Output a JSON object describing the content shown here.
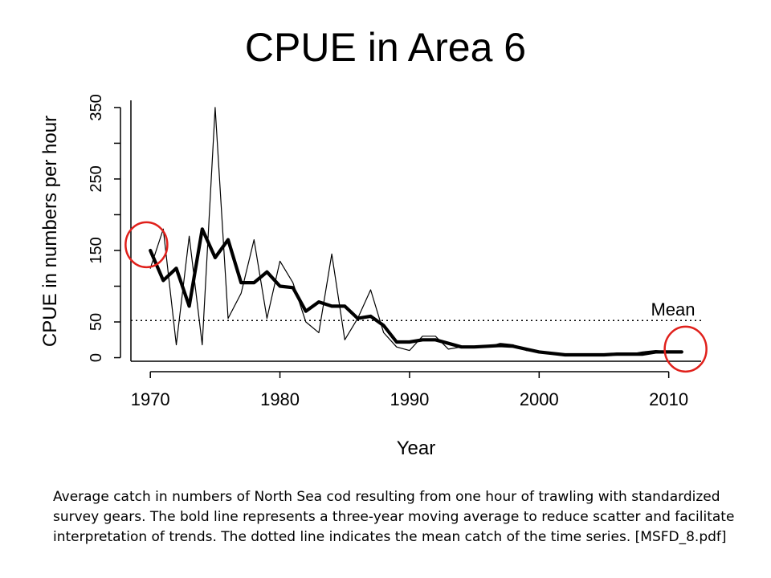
{
  "slide": {
    "title": "CPUE in Area 6",
    "caption": "Average catch in numbers of North Sea cod resulting from one hour of trawling with standardized survey gears. The bold line represents a three-year moving average to reduce scatter and facilitate interpretation of trends. The dotted line indicates the mean catch of the time series. [MSFD_8.pdf]"
  },
  "chart_data": {
    "type": "line",
    "title": "",
    "xlabel": "Year",
    "ylabel": "CPUE in numbers per hour",
    "xlim": [
      1968.5,
      2012.5
    ],
    "ylim": [
      -5,
      360
    ],
    "x_ticks": [
      1970,
      1980,
      1990,
      2000,
      2010
    ],
    "y_ticks": [
      0,
      50,
      150,
      250,
      350
    ],
    "series": [
      {
        "style": "thin",
        "x": [
          1970,
          1971,
          1972,
          1973,
          1974,
          1975,
          1976,
          1977,
          1978,
          1979,
          1980,
          1981,
          1982,
          1983,
          1984,
          1985,
          1986,
          1987,
          1988,
          1989,
          1990,
          1991,
          1992,
          1993,
          1994,
          1995,
          1996,
          1997,
          1998,
          1999,
          2000,
          2001,
          2002,
          2003,
          2004,
          2005,
          2006,
          2007,
          2008,
          2009,
          2010,
          2011
        ],
        "y": [
          125,
          180,
          18,
          170,
          18,
          350,
          55,
          90,
          165,
          55,
          135,
          105,
          50,
          35,
          145,
          25,
          55,
          95,
          35,
          15,
          10,
          30,
          30,
          12,
          15,
          15,
          15,
          20,
          18,
          10,
          8,
          5,
          5,
          5,
          5,
          5,
          5,
          5,
          8,
          10,
          8,
          8
        ]
      },
      {
        "style": "bold",
        "name": "three-year moving average",
        "x": [
          1970,
          1971,
          1972,
          1973,
          1974,
          1975,
          1976,
          1977,
          1978,
          1979,
          1980,
          1981,
          1982,
          1983,
          1984,
          1985,
          1986,
          1987,
          1988,
          1989,
          1990,
          1991,
          1992,
          1993,
          1994,
          1995,
          1996,
          1997,
          1998,
          1999,
          2000,
          2001,
          2002,
          2003,
          2004,
          2005,
          2006,
          2007,
          2008,
          2009,
          2010,
          2011
        ],
        "y": [
          150,
          108,
          125,
          72,
          180,
          140,
          165,
          105,
          105,
          120,
          100,
          98,
          65,
          78,
          72,
          72,
          55,
          58,
          45,
          22,
          22,
          25,
          25,
          20,
          15,
          15,
          16,
          17,
          16,
          12,
          8,
          6,
          4,
          4,
          4,
          4,
          5,
          5,
          5,
          8,
          8,
          8
        ]
      }
    ],
    "mean_line": {
      "value": 52,
      "label": "Mean",
      "style": "dotted"
    },
    "annotations": [
      {
        "type": "circle",
        "x": 1969.7,
        "y": 158,
        "color": "#e0201b"
      },
      {
        "type": "circle",
        "x": 2011.3,
        "y": 12,
        "color": "#e0201b"
      }
    ],
    "grid": false,
    "legend": "none"
  }
}
